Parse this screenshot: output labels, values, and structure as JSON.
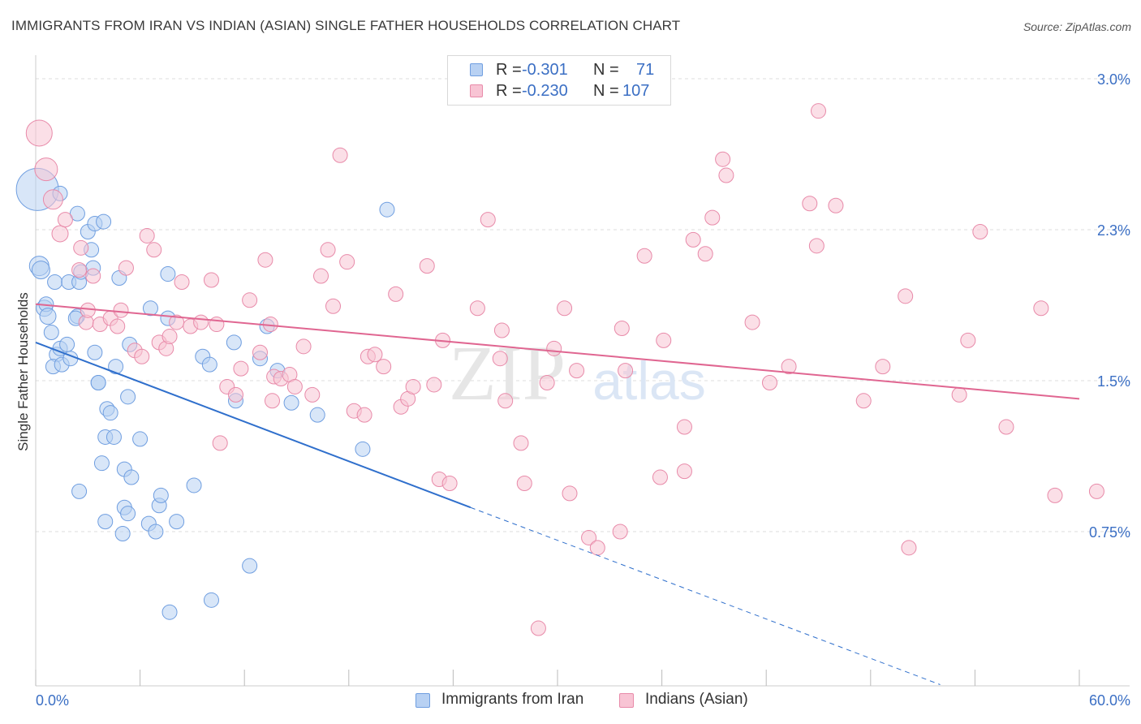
{
  "title": "IMMIGRANTS FROM IRAN VS INDIAN (ASIAN) SINGLE FATHER HOUSEHOLDS CORRELATION CHART",
  "source": "Source: ZipAtlas.com",
  "watermark": {
    "zip": "ZIP",
    "atlas": "atlas"
  },
  "legend": {
    "r_label": "R =",
    "n_label": "N =",
    "series": [
      {
        "name": "Immigrants from Iran",
        "r": "-0.301",
        "n": "71",
        "fill": "#b8d1f3",
        "stroke": "#6f9ee0"
      },
      {
        "name": "Indians (Asian)",
        "r": "-0.230",
        "n": "107",
        "fill": "#f8c4d4",
        "stroke": "#e88aa9"
      }
    ]
  },
  "colors": {
    "blue_fill": "#b8d1f3",
    "blue_stroke": "#6f9ee0",
    "blue_line": "#2f6fcc",
    "pink_fill": "#f8c4d4",
    "pink_stroke": "#e88aa9",
    "pink_line": "#e06691",
    "axis_label": "#3b6fc4",
    "grid": "#dddddd"
  },
  "chart_data": {
    "type": "scatter",
    "title": "IMMIGRANTS FROM IRAN VS INDIAN (ASIAN) SINGLE FATHER HOUSEHOLDS CORRELATION CHART",
    "xlabel": "",
    "ylabel": "Single Father Households",
    "xlim": [
      0,
      60
    ],
    "ylim": [
      0,
      3.15
    ],
    "x_tick_labels": [
      {
        "value": 0,
        "label": "0.0%"
      },
      {
        "value": 60,
        "label": "60.0%"
      }
    ],
    "y_ticks": [
      {
        "value": 0.75,
        "label": "0.75%"
      },
      {
        "value": 1.5,
        "label": "1.5%"
      },
      {
        "value": 2.25,
        "label": "2.3%"
      },
      {
        "value": 3.0,
        "label": "3.0%"
      }
    ],
    "x_minor_ticks": [
      0,
      6,
      12,
      18,
      24,
      30,
      36,
      42,
      48,
      54,
      60
    ],
    "grid": true,
    "series": [
      {
        "name": "Immigrants from Iran",
        "color": "blue",
        "trend": {
          "x0": 0,
          "y0": 1.69,
          "x1": 25,
          "y1": 0.87,
          "dash_to_x": 52,
          "dash_to_y": -0.01
        },
        "points": [
          [
            0.1,
            2.45,
            26
          ],
          [
            0.2,
            2.07,
            12
          ],
          [
            0.3,
            2.05,
            11
          ],
          [
            0.5,
            1.86,
            10
          ],
          [
            0.6,
            1.88,
            9
          ],
          [
            0.7,
            1.82,
            10
          ],
          [
            0.9,
            1.74,
            9
          ],
          [
            1.1,
            1.99,
            9
          ],
          [
            1.2,
            1.63,
            9
          ],
          [
            1.0,
            1.57,
            9
          ],
          [
            1.4,
            1.66,
            9
          ],
          [
            1.5,
            1.58,
            9
          ],
          [
            1.8,
            1.68,
            9
          ],
          [
            1.9,
            1.99,
            9
          ],
          [
            2.0,
            1.61,
            9
          ],
          [
            1.4,
            2.43,
            9
          ],
          [
            2.4,
            1.82,
            9
          ],
          [
            2.5,
            1.99,
            9
          ],
          [
            2.3,
            1.81,
            9
          ],
          [
            2.6,
            2.04,
            9
          ],
          [
            2.4,
            2.33,
            9
          ],
          [
            3.0,
            2.24,
            9
          ],
          [
            3.2,
            2.15,
            9
          ],
          [
            3.3,
            2.06,
            9
          ],
          [
            3.4,
            1.64,
            9
          ],
          [
            3.4,
            2.28,
            9
          ],
          [
            3.6,
            1.49,
            9
          ],
          [
            3.6,
            1.49,
            9
          ],
          [
            3.8,
            1.09,
            9
          ],
          [
            3.9,
            2.29,
            9
          ],
          [
            4.1,
            1.36,
            9
          ],
          [
            4.3,
            1.34,
            9
          ],
          [
            4.6,
            1.57,
            9
          ],
          [
            4.8,
            2.01,
            9
          ],
          [
            4.0,
            1.22,
            9
          ],
          [
            4.5,
            1.22,
            9
          ],
          [
            5.0,
            0.74,
            9
          ],
          [
            5.1,
            0.87,
            9
          ],
          [
            5.1,
            1.06,
            9
          ],
          [
            5.3,
            1.42,
            9
          ],
          [
            5.3,
            0.84,
            9
          ],
          [
            5.4,
            1.68,
            9
          ],
          [
            5.5,
            1.02,
            9
          ],
          [
            6.0,
            1.21,
            9
          ],
          [
            4.0,
            0.8,
            9
          ],
          [
            2.5,
            0.95,
            9
          ],
          [
            6.5,
            0.79,
            9
          ],
          [
            6.6,
            1.86,
            9
          ],
          [
            6.9,
            0.75,
            9
          ],
          [
            7.1,
            0.88,
            9
          ],
          [
            7.2,
            0.93,
            9
          ],
          [
            7.6,
            1.81,
            9
          ],
          [
            7.6,
            2.03,
            9
          ],
          [
            8.1,
            0.8,
            9
          ],
          [
            9.1,
            0.98,
            9
          ],
          [
            9.6,
            1.62,
            9
          ],
          [
            10.0,
            1.58,
            9
          ],
          [
            10.1,
            0.41,
            9
          ],
          [
            11.4,
            1.69,
            9
          ],
          [
            11.5,
            1.4,
            9
          ],
          [
            12.3,
            0.58,
            9
          ],
          [
            12.9,
            1.61,
            9
          ],
          [
            13.3,
            1.77,
            9
          ],
          [
            13.9,
            1.55,
            9
          ],
          [
            14.7,
            1.39,
            9
          ],
          [
            16.2,
            1.33,
            9
          ],
          [
            18.8,
            1.16,
            9
          ],
          [
            20.2,
            2.35,
            9
          ],
          [
            7.7,
            0.35,
            9
          ]
        ]
      },
      {
        "name": "Indians (Asian)",
        "color": "pink",
        "trend": {
          "x0": 0,
          "y0": 1.88,
          "x1": 60,
          "y1": 1.41
        },
        "points": [
          [
            0.2,
            2.73,
            16
          ],
          [
            0.6,
            2.55,
            14
          ],
          [
            1.0,
            2.4,
            12
          ],
          [
            1.4,
            2.23,
            10
          ],
          [
            1.7,
            2.3,
            9
          ],
          [
            2.5,
            2.05,
            9
          ],
          [
            2.6,
            2.16,
            9
          ],
          [
            2.9,
            1.79,
            9
          ],
          [
            3.0,
            1.85,
            9
          ],
          [
            3.3,
            2.02,
            9
          ],
          [
            3.7,
            1.78,
            9
          ],
          [
            4.3,
            1.81,
            9
          ],
          [
            4.7,
            1.77,
            9
          ],
          [
            4.9,
            1.85,
            9
          ],
          [
            5.2,
            2.06,
            9
          ],
          [
            5.7,
            1.65,
            9
          ],
          [
            6.1,
            1.62,
            9
          ],
          [
            6.4,
            2.22,
            9
          ],
          [
            6.8,
            2.15,
            9
          ],
          [
            7.1,
            1.69,
            9
          ],
          [
            7.5,
            1.66,
            9
          ],
          [
            7.7,
            1.72,
            9
          ],
          [
            8.1,
            1.79,
            9
          ],
          [
            8.4,
            1.99,
            9
          ],
          [
            8.9,
            1.77,
            9
          ],
          [
            9.5,
            1.79,
            9
          ],
          [
            10.1,
            2.0,
            9
          ],
          [
            10.4,
            1.78,
            9
          ],
          [
            10.6,
            1.19,
            9
          ],
          [
            11.0,
            1.47,
            9
          ],
          [
            11.5,
            1.43,
            9
          ],
          [
            11.8,
            1.56,
            9
          ],
          [
            12.3,
            1.9,
            9
          ],
          [
            12.9,
            1.64,
            9
          ],
          [
            13.2,
            2.1,
            9
          ],
          [
            13.5,
            1.78,
            9
          ],
          [
            13.6,
            1.4,
            9
          ],
          [
            13.7,
            1.52,
            9
          ],
          [
            14.1,
            1.51,
            9
          ],
          [
            14.6,
            1.53,
            9
          ],
          [
            14.9,
            1.47,
            9
          ],
          [
            15.4,
            1.67,
            9
          ],
          [
            15.9,
            1.43,
            9
          ],
          [
            16.4,
            2.02,
            9
          ],
          [
            16.8,
            2.15,
            9
          ],
          [
            17.1,
            1.87,
            9
          ],
          [
            17.5,
            2.62,
            9
          ],
          [
            17.9,
            2.09,
            9
          ],
          [
            18.3,
            1.35,
            9
          ],
          [
            18.9,
            1.33,
            9
          ],
          [
            19.1,
            1.62,
            9
          ],
          [
            19.5,
            1.63,
            9
          ],
          [
            20.0,
            1.57,
            9
          ],
          [
            20.7,
            1.93,
            9
          ],
          [
            21.0,
            1.37,
            9
          ],
          [
            21.4,
            1.41,
            9
          ],
          [
            21.7,
            1.47,
            9
          ],
          [
            22.5,
            2.07,
            9
          ],
          [
            22.9,
            1.48,
            9
          ],
          [
            23.4,
            1.7,
            9
          ],
          [
            23.2,
            1.01,
            9
          ],
          [
            23.8,
            0.99,
            9
          ],
          [
            24.6,
            2.93,
            9
          ],
          [
            25.4,
            1.86,
            9
          ],
          [
            26.0,
            2.3,
            9
          ],
          [
            26.7,
            1.61,
            9
          ],
          [
            26.8,
            1.75,
            9
          ],
          [
            27.0,
            1.4,
            9
          ],
          [
            27.9,
            1.19,
            9
          ],
          [
            28.1,
            0.99,
            9
          ],
          [
            28.9,
            0.27,
            9
          ],
          [
            29.4,
            1.49,
            9
          ],
          [
            29.8,
            1.66,
            9
          ],
          [
            30.4,
            1.86,
            9
          ],
          [
            30.7,
            0.94,
            9
          ],
          [
            31.1,
            1.55,
            9
          ],
          [
            31.8,
            0.72,
            9
          ],
          [
            32.3,
            0.67,
            9
          ],
          [
            33.7,
            1.76,
            9
          ],
          [
            33.9,
            1.55,
            9
          ],
          [
            33.6,
            0.75,
            9
          ],
          [
            35.0,
            2.12,
            9
          ],
          [
            35.9,
            1.02,
            9
          ],
          [
            36.1,
            1.7,
            9
          ],
          [
            37.3,
            1.27,
            9
          ],
          [
            37.3,
            1.05,
            9
          ],
          [
            37.8,
            2.2,
            9
          ],
          [
            38.5,
            2.13,
            9
          ],
          [
            38.9,
            2.31,
            9
          ],
          [
            39.5,
            2.6,
            9
          ],
          [
            39.7,
            2.52,
            9
          ],
          [
            41.2,
            1.79,
            9
          ],
          [
            42.2,
            1.49,
            9
          ],
          [
            43.3,
            1.57,
            9
          ],
          [
            44.5,
            2.38,
            9
          ],
          [
            44.9,
            2.17,
            9
          ],
          [
            45.0,
            2.84,
            9
          ],
          [
            46.0,
            2.37,
            9
          ],
          [
            47.6,
            1.4,
            9
          ],
          [
            48.7,
            1.57,
            9
          ],
          [
            50.0,
            1.92,
            9
          ],
          [
            50.2,
            0.67,
            9
          ],
          [
            53.1,
            1.43,
            9
          ],
          [
            53.6,
            1.7,
            9
          ],
          [
            54.3,
            2.24,
            9
          ],
          [
            55.8,
            1.27,
            9
          ],
          [
            57.8,
            1.86,
            9
          ],
          [
            58.6,
            0.93,
            9
          ],
          [
            61.0,
            0.95,
            9
          ]
        ]
      }
    ]
  }
}
